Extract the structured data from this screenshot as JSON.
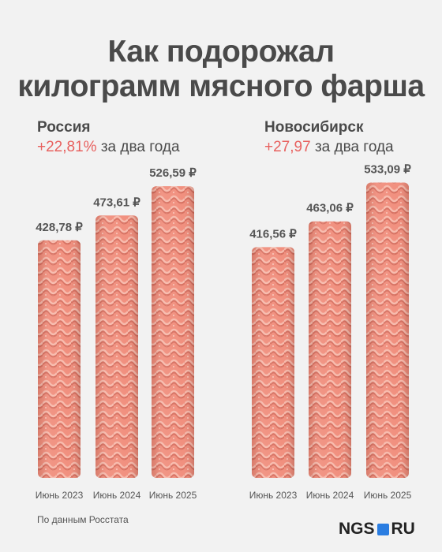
{
  "title_line1": "Как подорожал",
  "title_line2": "килограмм мясного фарша",
  "footer": "По данным Росстата",
  "logo": {
    "left": "NGS",
    "right": "RU"
  },
  "colors": {
    "accent_red": "#e8615f",
    "bar_base": "#f08a78",
    "bar_light": "#f6b1a2",
    "bar_dark": "#d56a5a",
    "title": "#4a4a4a",
    "logo_blue": "#2a7de1"
  },
  "chart_data": [
    {
      "type": "bar",
      "region": "Россия",
      "change_pct": "+22,81%",
      "change_suffix": "за два года",
      "categories": [
        "Июнь 2023",
        "Июнь 2024",
        "Июнь 2025"
      ],
      "values": [
        428.78,
        473.61,
        526.59
      ],
      "value_labels": [
        "428,78 ₽",
        "473,61 ₽",
        "526,59 ₽"
      ],
      "title": "",
      "xlabel": "",
      "ylabel": ""
    },
    {
      "type": "bar",
      "region": "Новосибирск",
      "change_pct": "+27,97",
      "change_suffix": "за два года",
      "categories": [
        "Июнь 2023",
        "Июнь 2024",
        "Июнь 2025"
      ],
      "values": [
        416.56,
        463.06,
        533.09
      ],
      "value_labels": [
        "416,56 ₽",
        "463,06 ₽",
        "533,09 ₽"
      ],
      "title": "",
      "xlabel": "",
      "ylabel": ""
    }
  ]
}
